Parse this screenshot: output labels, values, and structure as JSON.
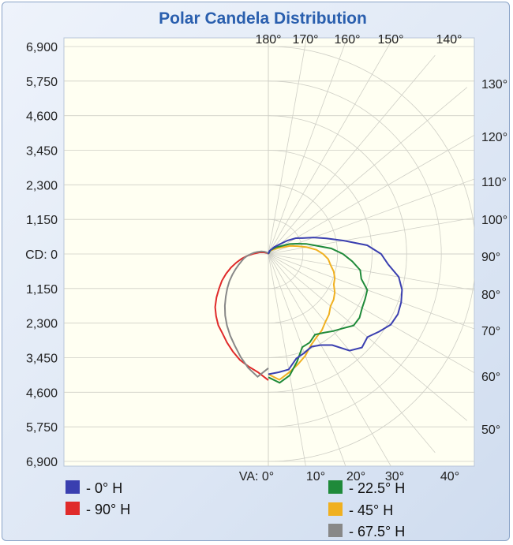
{
  "chart_data": {
    "type": "line",
    "subtype": "polar",
    "title": "Polar Candela Distribution",
    "left_axis_ticks": [
      "6,900",
      "5,750",
      "4,600",
      "3,450",
      "2,300",
      "1,150",
      "CD: 0",
      "1,150",
      "2,300",
      "3,450",
      "4,600",
      "5,750",
      "6,900"
    ],
    "top_angle_ticks": [
      "180°",
      "170°",
      "160°",
      "150°",
      "140°"
    ],
    "right_angle_ticks": [
      "130°",
      "120°",
      "110°",
      "100°",
      "90°",
      "80°",
      "70°",
      "60°",
      "50°"
    ],
    "bottom_angle_ticks": [
      "VA: 0°",
      "10°",
      "20°",
      "30°",
      "40°"
    ],
    "radial_range_cd": [
      0,
      6900
    ],
    "series": [
      {
        "name": "- 0° H",
        "color": "#3a3fb0",
        "points": [
          [
            0,
            4000
          ],
          [
            5,
            3950
          ],
          [
            10,
            3900
          ],
          [
            15,
            3600
          ],
          [
            20,
            3500
          ],
          [
            25,
            3400
          ],
          [
            30,
            3500
          ],
          [
            35,
            3700
          ],
          [
            40,
            4200
          ],
          [
            45,
            4400
          ],
          [
            50,
            4300
          ],
          [
            55,
            4500
          ],
          [
            60,
            4700
          ],
          [
            65,
            4750
          ],
          [
            70,
            4700
          ],
          [
            75,
            4600
          ],
          [
            80,
            4400
          ],
          [
            85,
            4000
          ],
          [
            90,
            3750
          ],
          [
            95,
            3300
          ],
          [
            100,
            2550
          ],
          [
            105,
            2000
          ],
          [
            110,
            1600
          ],
          [
            115,
            1250
          ],
          [
            120,
            1050
          ],
          [
            125,
            780
          ],
          [
            130,
            520
          ],
          [
            140,
            300
          ],
          [
            160,
            100
          ],
          [
            180,
            0
          ]
        ]
      },
      {
        "name": "- 22.5° H",
        "color": "#1f8a3a",
        "points": [
          [
            0,
            4100
          ],
          [
            5,
            4300
          ],
          [
            10,
            4100
          ],
          [
            15,
            3700
          ],
          [
            20,
            3300
          ],
          [
            25,
            3250
          ],
          [
            30,
            3100
          ],
          [
            35,
            3200
          ],
          [
            40,
            3350
          ],
          [
            45,
            3500
          ],
          [
            50,
            3700
          ],
          [
            55,
            3700
          ],
          [
            60,
            3600
          ],
          [
            65,
            3550
          ],
          [
            70,
            3500
          ],
          [
            75,
            3200
          ],
          [
            80,
            3100
          ],
          [
            85,
            2800
          ],
          [
            90,
            2480
          ],
          [
            95,
            2100
          ],
          [
            100,
            1600
          ],
          [
            105,
            1300
          ],
          [
            110,
            1000
          ],
          [
            115,
            780
          ],
          [
            120,
            550
          ],
          [
            130,
            350
          ],
          [
            150,
            150
          ],
          [
            180,
            0
          ]
        ]
      },
      {
        "name": "- 45° H",
        "color": "#f0b020",
        "points": [
          [
            0,
            4000
          ],
          [
            5,
            4200
          ],
          [
            10,
            4000
          ],
          [
            15,
            3800
          ],
          [
            20,
            3600
          ],
          [
            25,
            3350
          ],
          [
            30,
            3200
          ],
          [
            35,
            3100
          ],
          [
            40,
            2950
          ],
          [
            45,
            2850
          ],
          [
            50,
            2700
          ],
          [
            55,
            2650
          ],
          [
            60,
            2550
          ],
          [
            65,
            2400
          ],
          [
            70,
            2350
          ],
          [
            75,
            2250
          ],
          [
            80,
            2100
          ],
          [
            85,
            2000
          ],
          [
            90,
            1820
          ],
          [
            95,
            1600
          ],
          [
            100,
            1300
          ],
          [
            105,
            1000
          ],
          [
            110,
            780
          ],
          [
            115,
            550
          ],
          [
            120,
            400
          ],
          [
            130,
            250
          ],
          [
            150,
            120
          ],
          [
            180,
            0
          ]
        ]
      },
      {
        "name": "- 67.5° H",
        "color": "#888888",
        "points": [
          [
            0,
            3800
          ],
          [
            5,
            4100
          ],
          [
            10,
            3850
          ],
          [
            15,
            3550
          ],
          [
            20,
            3250
          ],
          [
            25,
            3000
          ],
          [
            30,
            2750
          ],
          [
            35,
            2500
          ],
          [
            40,
            2250
          ],
          [
            45,
            2000
          ],
          [
            50,
            1780
          ],
          [
            55,
            1580
          ],
          [
            60,
            1380
          ],
          [
            65,
            1200
          ],
          [
            70,
            1050
          ],
          [
            75,
            920
          ],
          [
            80,
            820
          ],
          [
            85,
            700
          ],
          [
            90,
            580
          ],
          [
            95,
            480
          ],
          [
            100,
            380
          ],
          [
            110,
            250
          ],
          [
            120,
            150
          ],
          [
            140,
            60
          ],
          [
            180,
            0
          ]
        ]
      },
      {
        "name": "- 90° H",
        "color": "#e02a2a",
        "points": [
          [
            0,
            4200
          ],
          [
            5,
            3950
          ],
          [
            10,
            3800
          ],
          [
            15,
            3650
          ],
          [
            20,
            3450
          ],
          [
            25,
            3250
          ],
          [
            30,
            3050
          ],
          [
            35,
            2900
          ],
          [
            40,
            2700
          ],
          [
            45,
            2500
          ],
          [
            50,
            2250
          ],
          [
            55,
            2000
          ],
          [
            60,
            1780
          ],
          [
            65,
            1550
          ],
          [
            70,
            1320
          ],
          [
            75,
            1100
          ],
          [
            80,
            900
          ],
          [
            85,
            700
          ],
          [
            90,
            520
          ],
          [
            100,
            300
          ],
          [
            110,
            150
          ],
          [
            130,
            50
          ],
          [
            180,
            0
          ]
        ]
      },
      {
        "name": "- 0° H",
        "mirror_of": "- 90° H",
        "note": ""
      }
    ],
    "legend": {
      "placement": "bottom",
      "items": [
        {
          "label": "- 0° H",
          "color": "#3a3fb0"
        },
        {
          "label": "- 90° H",
          "color": "#e02a2a"
        },
        {
          "label": "- 22.5° H",
          "color": "#1f8a3a"
        },
        {
          "label": "- 45° H",
          "color": "#f0b020"
        },
        {
          "label": "- 67.5° H",
          "color": "#888888"
        }
      ]
    },
    "grid": true,
    "colors": {
      "plot_bg": "#fffff2",
      "grid": "#cfcfc6",
      "title": "#2a5fae"
    }
  }
}
